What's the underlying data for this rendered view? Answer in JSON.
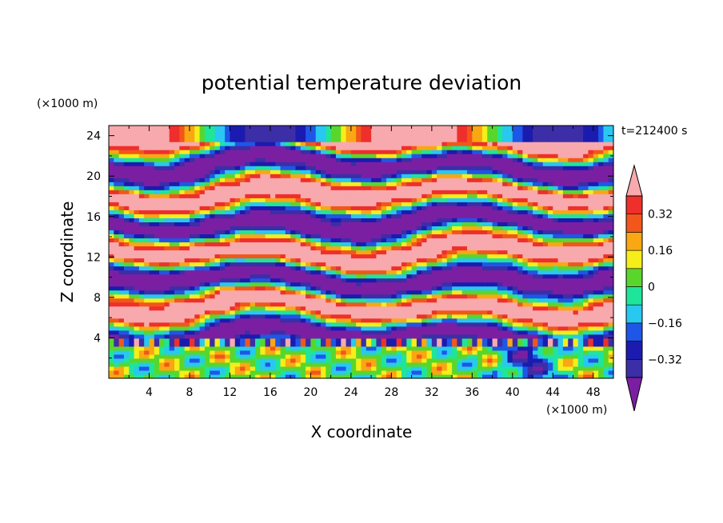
{
  "chart_data": {
    "type": "heatmap",
    "title": "potential temperature deviation",
    "xlabel": "X coordinate",
    "ylabel": "Z coordinate",
    "x_unit": "(×1000 m)",
    "y_unit": "(×1000 m)",
    "time_label": "t=212400 s",
    "xlim": [
      0,
      50
    ],
    "ylim": [
      0,
      25
    ],
    "x_ticks": [
      4,
      8,
      12,
      16,
      20,
      24,
      28,
      32,
      36,
      40,
      44,
      48
    ],
    "y_ticks": [
      4,
      8,
      12,
      16,
      20,
      24
    ],
    "colorbar": {
      "levels": [
        -0.4,
        -0.32,
        -0.24,
        -0.16,
        -0.08,
        0,
        0.08,
        0.16,
        0.24,
        0.32,
        0.4
      ],
      "colors": [
        "#7b1fa2",
        "#3c2ea6",
        "#1b1bb0",
        "#1e56e8",
        "#28c8f0",
        "#1fe59a",
        "#59d62c",
        "#f5ee1a",
        "#f9a712",
        "#f2561b",
        "#ee2f2c",
        "#f7a9ad"
      ],
      "tick_values": [
        0.32,
        0.16,
        0,
        -0.16,
        -0.32
      ],
      "tick_labels": [
        "0.32",
        "0.16",
        "0",
        "−0.16",
        "−0.32"
      ],
      "extend": "both"
    }
  }
}
